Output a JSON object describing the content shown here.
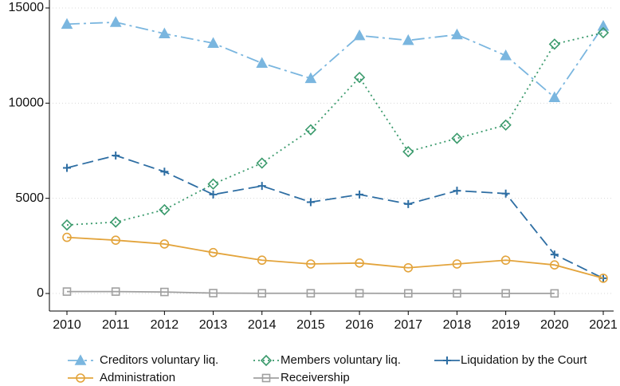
{
  "chart_data": {
    "type": "line",
    "x": [
      2010,
      2011,
      2012,
      2013,
      2014,
      2015,
      2016,
      2017,
      2018,
      2019,
      2020,
      2021
    ],
    "xlim": [
      2010,
      2021
    ],
    "xticks": [
      2010,
      2011,
      2012,
      2013,
      2014,
      2015,
      2016,
      2017,
      2018,
      2019,
      2020,
      2021
    ],
    "ylim": [
      0,
      15000
    ],
    "yticks": [
      0,
      5000,
      10000,
      15000
    ],
    "grid": true,
    "legend": "bottom",
    "series": [
      {
        "name": "Creditors voluntary liq.",
        "color": "#7ab6df",
        "marker": "triangle",
        "dash": "dashdot",
        "values": [
          14150,
          14250,
          13650,
          13150,
          12100,
          11300,
          13550,
          13300,
          13600,
          12500,
          10300,
          14050
        ]
      },
      {
        "name": "Members voluntary liq.",
        "color": "#3a9a6c",
        "marker": "diamond",
        "dash": "dot",
        "values": [
          3600,
          3750,
          4400,
          5750,
          6850,
          8600,
          11350,
          7450,
          8150,
          8850,
          13100,
          13700
        ]
      },
      {
        "name": "Liquidation by the Court",
        "color": "#2e6ea3",
        "marker": "plus",
        "dash": "dash",
        "values": [
          6600,
          7250,
          6400,
          5200,
          5650,
          4800,
          5200,
          4700,
          5400,
          5250,
          2050,
          800
        ]
      },
      {
        "name": "Administration",
        "color": "#e3a43c",
        "marker": "circle",
        "dash": "solid",
        "values": [
          2950,
          2800,
          2600,
          2150,
          1750,
          1550,
          1600,
          1350,
          1550,
          1750,
          1500,
          800
        ]
      },
      {
        "name": "Receivership",
        "color": "#a0a0a0",
        "marker": "square",
        "dash": "solid",
        "values": [
          100,
          100,
          80,
          20,
          10,
          10,
          10,
          5,
          5,
          5,
          5,
          null
        ]
      }
    ]
  }
}
